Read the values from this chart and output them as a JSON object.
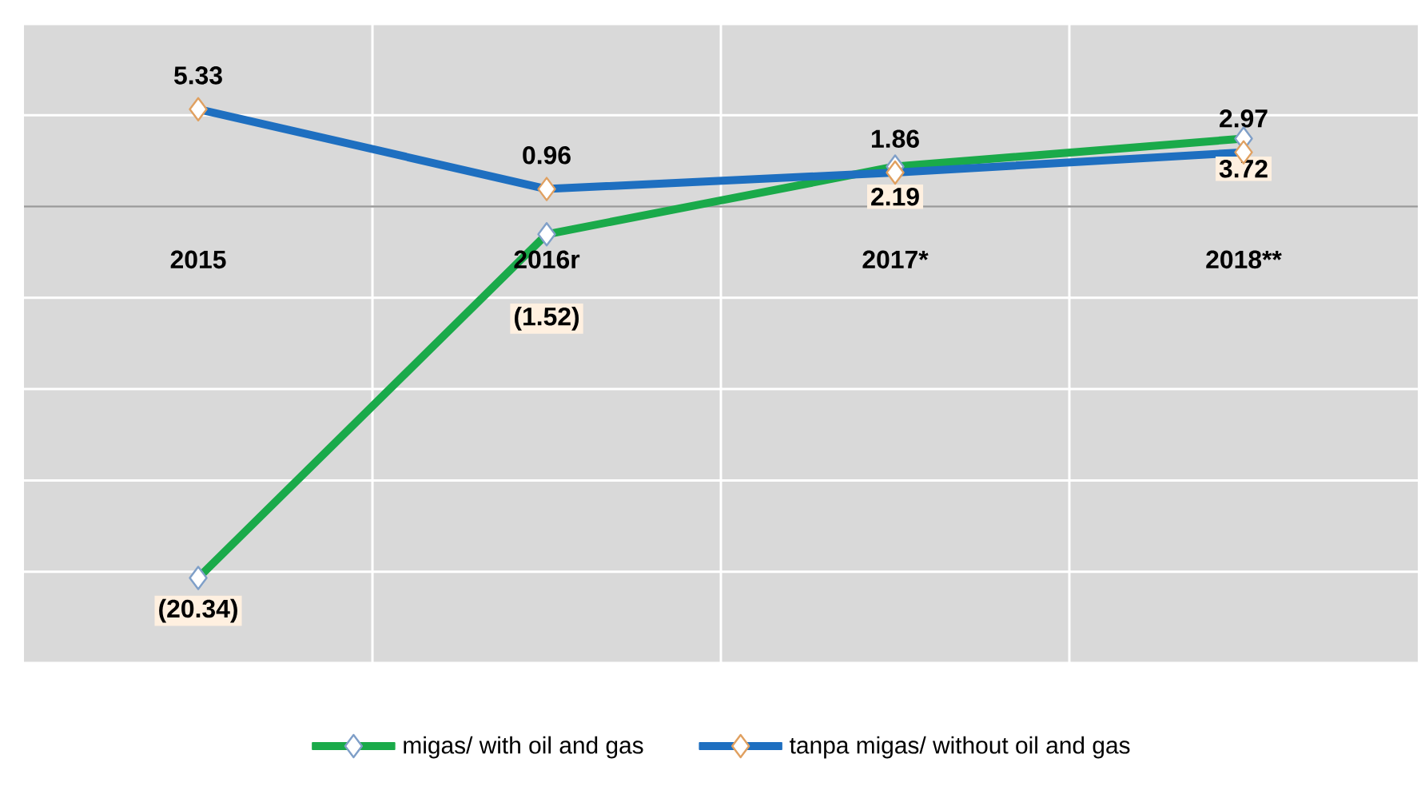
{
  "chart_data": {
    "type": "line",
    "categories": [
      "2015",
      "2016r",
      "2017*",
      "2018**"
    ],
    "series": [
      {
        "name": "migas/ with oil and gas",
        "color": "#1aaa4a",
        "values": [
          -20.34,
          -1.52,
          2.19,
          3.72
        ],
        "value_labels": [
          "(20.34)",
          "(1.52)",
          "2.19",
          "3.72"
        ]
      },
      {
        "name": "tanpa migas/ without oil and gas",
        "color": "#1e6fc0",
        "values": [
          5.33,
          0.96,
          1.86,
          2.97
        ],
        "value_labels": [
          "5.33",
          "0.96",
          "1.86",
          "2.97"
        ]
      }
    ],
    "ylim": [
      -25,
      10
    ],
    "tick_labels": "x",
    "grid": true,
    "legend": "bottom",
    "marker": "diamond",
    "line_style": "solid"
  }
}
